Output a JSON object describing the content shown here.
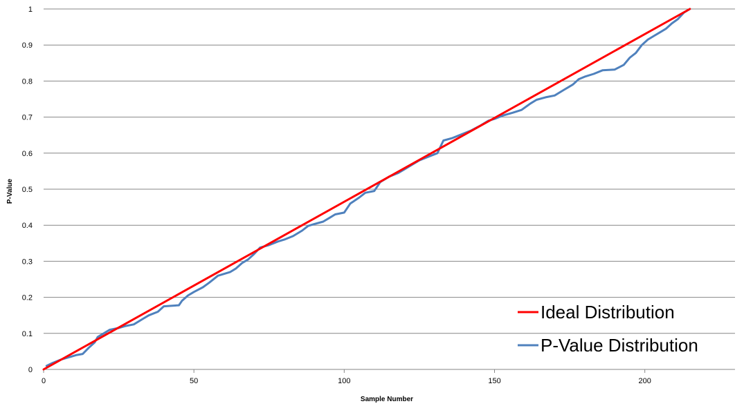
{
  "chart_data": {
    "type": "line",
    "title": "",
    "xlabel": "Sample Number",
    "ylabel": "P-Value",
    "xlim": [
      0,
      230
    ],
    "ylim": [
      0,
      1
    ],
    "x_ticks": [
      "0",
      "50",
      "100",
      "150",
      "200"
    ],
    "y_ticks": [
      "0",
      "0.1",
      "0.2",
      "0.3",
      "0.4",
      "0.5",
      "0.6",
      "0.7",
      "0.8",
      "0.9",
      "1"
    ],
    "grid": "horizontal",
    "legend_position": "bottom-right",
    "series": [
      {
        "name": "Ideal Distribution",
        "color": "#ff0000",
        "points": [
          [
            0,
            0.0
          ],
          [
            215,
            1.0
          ]
        ]
      },
      {
        "name": "P-Value Distribution",
        "color": "#4f81bd",
        "points": [
          [
            1,
            0.01
          ],
          [
            3,
            0.018
          ],
          [
            6,
            0.028
          ],
          [
            9,
            0.035
          ],
          [
            11,
            0.04
          ],
          [
            13,
            0.043
          ],
          [
            15,
            0.06
          ],
          [
            17,
            0.075
          ],
          [
            18,
            0.09
          ],
          [
            20,
            0.1
          ],
          [
            22,
            0.11
          ],
          [
            25,
            0.115
          ],
          [
            27,
            0.12
          ],
          [
            30,
            0.125
          ],
          [
            33,
            0.14
          ],
          [
            35,
            0.15
          ],
          [
            38,
            0.16
          ],
          [
            40,
            0.175
          ],
          [
            45,
            0.178
          ],
          [
            46,
            0.19
          ],
          [
            48,
            0.205
          ],
          [
            50,
            0.215
          ],
          [
            53,
            0.228
          ],
          [
            55,
            0.24
          ],
          [
            58,
            0.26
          ],
          [
            62,
            0.27
          ],
          [
            64,
            0.28
          ],
          [
            66,
            0.295
          ],
          [
            68,
            0.305
          ],
          [
            70,
            0.32
          ],
          [
            72,
            0.338
          ],
          [
            75,
            0.345
          ],
          [
            78,
            0.355
          ],
          [
            80,
            0.36
          ],
          [
            83,
            0.37
          ],
          [
            86,
            0.385
          ],
          [
            88,
            0.398
          ],
          [
            90,
            0.403
          ],
          [
            93,
            0.41
          ],
          [
            95,
            0.42
          ],
          [
            97,
            0.43
          ],
          [
            100,
            0.435
          ],
          [
            102,
            0.46
          ],
          [
            105,
            0.477
          ],
          [
            107,
            0.49
          ],
          [
            110,
            0.495
          ],
          [
            112,
            0.52
          ],
          [
            115,
            0.535
          ],
          [
            118,
            0.545
          ],
          [
            120,
            0.555
          ],
          [
            123,
            0.57
          ],
          [
            125,
            0.58
          ],
          [
            128,
            0.59
          ],
          [
            131,
            0.6
          ],
          [
            133,
            0.635
          ],
          [
            136,
            0.642
          ],
          [
            139,
            0.652
          ],
          [
            142,
            0.662
          ],
          [
            145,
            0.675
          ],
          [
            148,
            0.69
          ],
          [
            150,
            0.695
          ],
          [
            153,
            0.705
          ],
          [
            156,
            0.712
          ],
          [
            159,
            0.72
          ],
          [
            162,
            0.738
          ],
          [
            164,
            0.748
          ],
          [
            167,
            0.755
          ],
          [
            170,
            0.76
          ],
          [
            173,
            0.775
          ],
          [
            176,
            0.79
          ],
          [
            178,
            0.805
          ],
          [
            180,
            0.812
          ],
          [
            183,
            0.82
          ],
          [
            186,
            0.83
          ],
          [
            190,
            0.832
          ],
          [
            193,
            0.845
          ],
          [
            195,
            0.865
          ],
          [
            197,
            0.878
          ],
          [
            199,
            0.9
          ],
          [
            201,
            0.915
          ],
          [
            203,
            0.925
          ],
          [
            205,
            0.935
          ],
          [
            207,
            0.945
          ],
          [
            209,
            0.96
          ],
          [
            211,
            0.972
          ],
          [
            213,
            0.99
          ],
          [
            215,
            1.0
          ]
        ]
      }
    ]
  }
}
